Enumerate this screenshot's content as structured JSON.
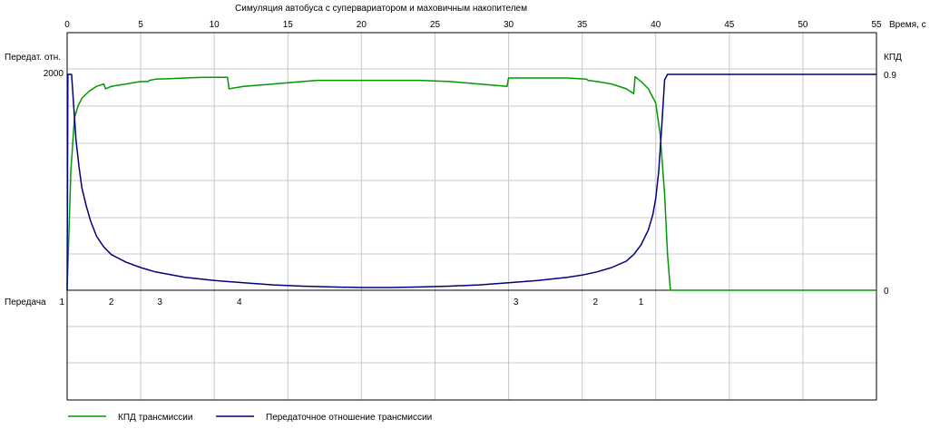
{
  "chart_data": {
    "type": "line",
    "title": "Симуляция автобуса с супервариатором и маховичным накопителем",
    "xlabel": "Время, с",
    "xlim": [
      0,
      55
    ],
    "x_ticks": [
      "0",
      "5",
      "10",
      "15",
      "20",
      "25",
      "30",
      "35",
      "40",
      "45",
      "50",
      "55"
    ],
    "y_left_label": "Передат. отн.",
    "y_left_ticks": [
      "2000"
    ],
    "y_left_range": [
      0,
      2000
    ],
    "y_right_label": "КПД",
    "y_right_ticks": [
      "0.9",
      "0"
    ],
    "y_right_range": [
      0,
      0.9
    ],
    "gear_panel": {
      "label": "Передача",
      "markers": [
        {
          "t": 0,
          "gear": "1"
        },
        {
          "t": 3,
          "gear": "2"
        },
        {
          "t": 6.3,
          "gear": "3"
        },
        {
          "t": 11.7,
          "gear": "4"
        },
        {
          "t": 30.5,
          "gear": "3"
        },
        {
          "t": 35.9,
          "gear": "2"
        },
        {
          "t": 39,
          "gear": "1"
        }
      ]
    },
    "series": [
      {
        "name": "КПД трансмиссии",
        "color": "#009900",
        "axis": "right",
        "x": [
          0,
          0.25,
          0.5,
          0.75,
          1.0,
          1.5,
          2.0,
          2.5,
          2.6,
          3.0,
          3.5,
          4.0,
          4.5,
          5.0,
          5.5,
          5.6,
          6,
          7,
          8,
          9,
          10,
          10.9,
          11.0,
          12,
          14,
          16,
          17,
          18,
          20,
          22,
          24,
          26,
          28,
          29.9,
          30.0,
          32,
          34,
          35.3,
          35.4,
          36,
          37,
          38,
          38.5,
          38.6,
          39,
          39.5,
          40.0,
          40.3,
          40.6,
          40.8,
          41.0,
          45,
          50,
          55
        ],
        "y": [
          0,
          0.5,
          0.72,
          0.77,
          0.8,
          0.83,
          0.85,
          0.86,
          0.84,
          0.85,
          0.855,
          0.86,
          0.865,
          0.87,
          0.87,
          0.875,
          0.88,
          0.882,
          0.885,
          0.887,
          0.888,
          0.888,
          0.84,
          0.85,
          0.86,
          0.87,
          0.875,
          0.875,
          0.875,
          0.875,
          0.875,
          0.87,
          0.86,
          0.85,
          0.885,
          0.885,
          0.885,
          0.88,
          0.875,
          0.87,
          0.86,
          0.84,
          0.82,
          0.89,
          0.87,
          0.84,
          0.78,
          0.65,
          0.4,
          0.15,
          0,
          0,
          0,
          0
        ]
      },
      {
        "name": "Передаточное отношение трансмиссии",
        "color": "#000080",
        "axis": "left",
        "x": [
          0,
          0.05,
          0.3,
          0.45,
          0.6,
          0.8,
          1.0,
          1.3,
          1.6,
          2.0,
          2.5,
          3,
          4,
          5,
          6,
          8,
          10,
          12,
          14,
          16,
          18,
          20,
          22,
          24,
          26,
          28,
          30,
          32,
          34,
          35,
          36,
          37,
          38,
          38.5,
          39,
          39.5,
          39.8,
          40.0,
          40.2,
          40.4,
          40.6,
          40.8,
          41,
          45,
          50,
          55
        ],
        "y": [
          0,
          2000,
          2000,
          1700,
          1400,
          1150,
          950,
          780,
          640,
          500,
          400,
          330,
          260,
          210,
          170,
          120,
          90,
          70,
          50,
          38,
          30,
          25,
          25,
          30,
          38,
          50,
          70,
          90,
          120,
          140,
          170,
          210,
          270,
          330,
          420,
          560,
          700,
          850,
          1100,
          1500,
          1950,
          2000,
          2000,
          2000,
          2000,
          2000
        ]
      }
    ],
    "legend_position": "bottom-left",
    "grid": true
  }
}
